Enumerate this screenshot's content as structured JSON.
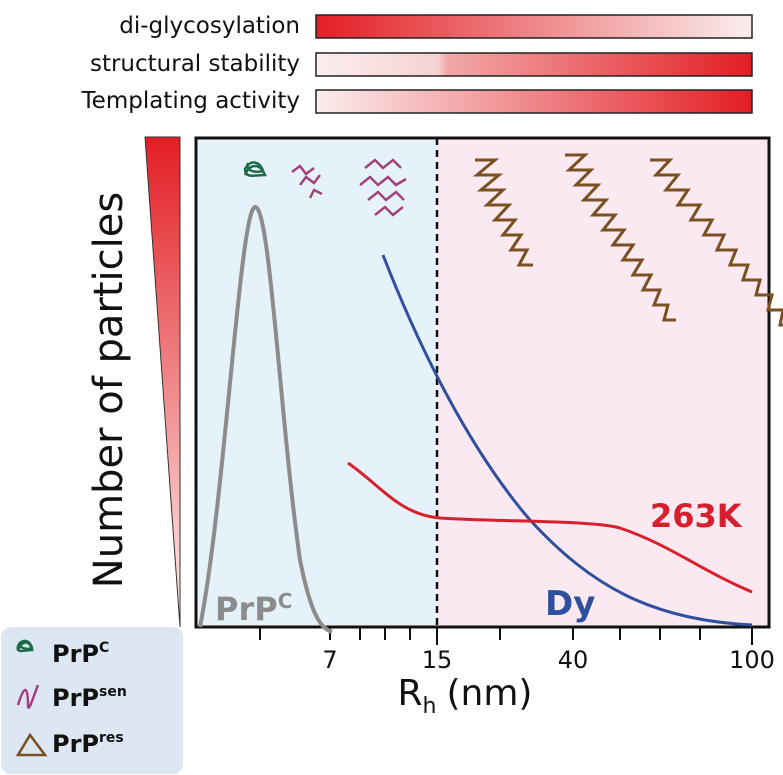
{
  "property_bars": [
    {
      "label": "di-glycosylation"
    },
    {
      "label": "structural stability"
    },
    {
      "label": "Templating activity"
    }
  ],
  "y_axis_label": "Number of particles",
  "x_axis_label": {
    "main": "R",
    "sub": "h",
    "unit": "(nm)"
  },
  "x_tick_labels": [
    "7",
    "15",
    "40",
    "100"
  ],
  "curve_labels": [
    {
      "label": "PrP",
      "sup": "C"
    },
    {
      "label": "Dy"
    },
    {
      "label": "263K"
    }
  ],
  "legend": [
    {
      "label": "PrP",
      "sup": "C"
    },
    {
      "label": "PrP",
      "sup": "sen"
    },
    {
      "label": "PrP",
      "sup": "res"
    }
  ]
}
